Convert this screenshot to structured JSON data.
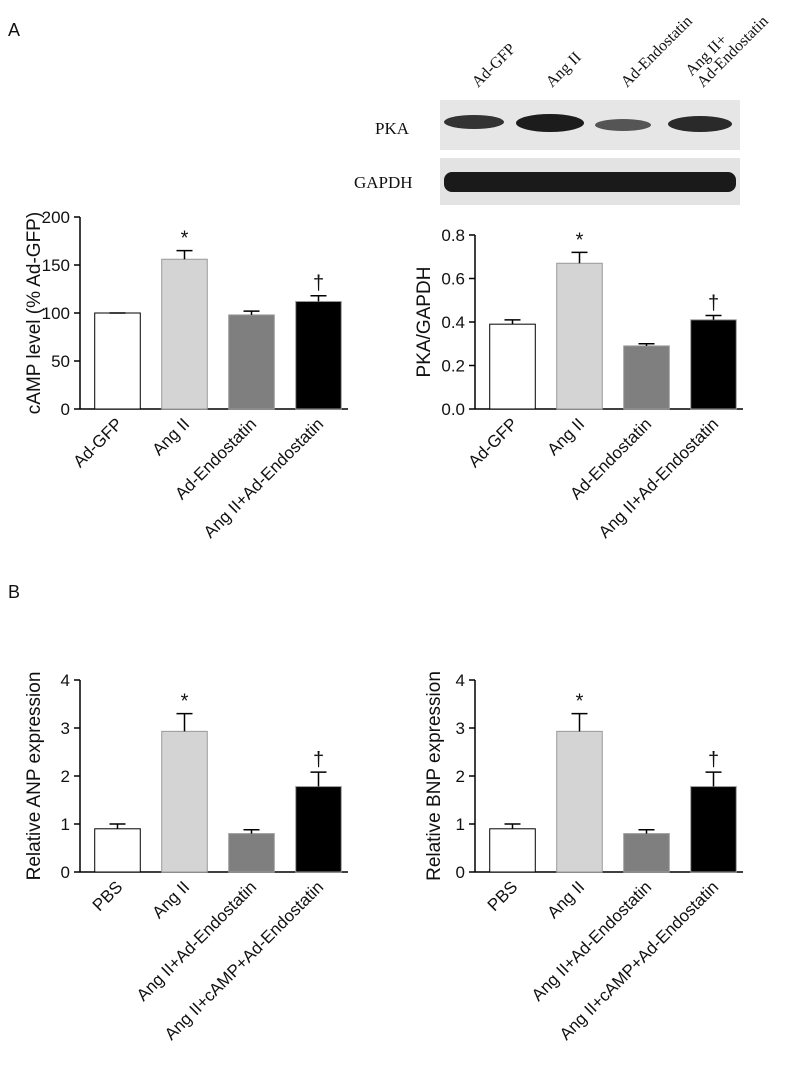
{
  "panels": [
    "A",
    "B"
  ],
  "blot": {
    "lanes": [
      "Ad-GFP",
      "Ang II",
      "Ad-Endostatin",
      "Ang II+\nAd-Endostatin"
    ],
    "rows": [
      "PKA",
      "GAPDH"
    ]
  },
  "chart_data": [
    {
      "type": "bar",
      "y_label": "cAMP level (% Ad-GFP)",
      "categories": [
        "Ad-GFP",
        "Ang II",
        "Ad-Endostatin",
        "Ang II+Ad-Endostatin"
      ],
      "values": [
        100,
        156,
        98,
        112
      ],
      "errors": [
        0,
        9,
        4,
        6
      ],
      "colors": [
        "#ffffff",
        "#d4d4d4",
        "#7f7f7f",
        "#000000"
      ],
      "ylim": [
        0,
        200
      ],
      "yticks": [
        0,
        50,
        100,
        150,
        200
      ],
      "annotations": [
        {
          "index": 1,
          "text": "*"
        },
        {
          "index": 3,
          "text": "†"
        }
      ]
    },
    {
      "type": "bar",
      "y_label": "PKA/GAPDH",
      "categories": [
        "Ad-GFP",
        "Ang II",
        "Ad-Endostatin",
        "Ang II+Ad-Endostatin"
      ],
      "values": [
        0.39,
        0.67,
        0.29,
        0.41
      ],
      "errors": [
        0.02,
        0.05,
        0.01,
        0.02
      ],
      "colors": [
        "#ffffff",
        "#d4d4d4",
        "#7f7f7f",
        "#000000"
      ],
      "ylim": [
        0,
        0.8
      ],
      "yticks": [
        {
          "value": 0,
          "label": "0.0"
        },
        0.2,
        0.4,
        0.6,
        0.8
      ],
      "annotations": [
        {
          "index": 1,
          "text": "*"
        },
        {
          "index": 3,
          "text": "†"
        }
      ]
    },
    {
      "type": "bar",
      "y_label": "Relative ANP expression",
      "categories": [
        "PBS",
        "Ang II",
        "Ang II+Ad-Endostatin",
        "Ang II+cAMP+Ad-Endostatin"
      ],
      "values": [
        0.9,
        2.93,
        0.8,
        1.78
      ],
      "errors": [
        0.1,
        0.37,
        0.08,
        0.3
      ],
      "colors": [
        "#ffffff",
        "#d4d4d4",
        "#7f7f7f",
        "#000000"
      ],
      "ylim": [
        0,
        4
      ],
      "yticks": [
        0,
        1,
        2,
        3,
        4
      ],
      "annotations": [
        {
          "index": 1,
          "text": "*"
        },
        {
          "index": 3,
          "text": "†"
        }
      ]
    },
    {
      "type": "bar",
      "y_label": "Relative BNP expression",
      "categories": [
        "PBS",
        "Ang II",
        "Ang II+Ad-Endostatin",
        "Ang II+cAMP+Ad-Endostatin"
      ],
      "values": [
        0.9,
        2.93,
        0.8,
        1.78
      ],
      "errors": [
        0.1,
        0.37,
        0.08,
        0.3
      ],
      "colors": [
        "#ffffff",
        "#d4d4d4",
        "#7f7f7f",
        "#000000"
      ],
      "ylim": [
        0,
        4
      ],
      "yticks": [
        0,
        1,
        2,
        3,
        4
      ],
      "annotations": [
        {
          "index": 1,
          "text": "*"
        },
        {
          "index": 3,
          "text": "†"
        }
      ]
    }
  ]
}
